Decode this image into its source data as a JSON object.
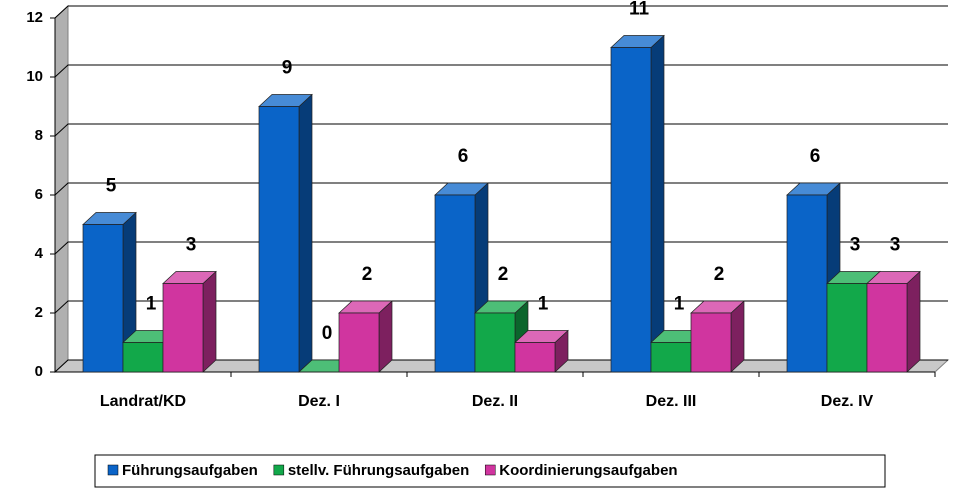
{
  "chart_data": {
    "type": "bar3d",
    "categories": [
      "Landrat/KD",
      "Dez. I",
      "Dez. II",
      "Dez. III",
      "Dez. IV"
    ],
    "series": [
      {
        "name": "Führungsaufgaben",
        "color": "#0a64c8",
        "values": [
          5,
          9,
          6,
          11,
          6
        ]
      },
      {
        "name": "stellv. Führungsaufgaben",
        "color": "#12a84a",
        "values": [
          1,
          0,
          2,
          1,
          3
        ]
      },
      {
        "name": "Koordinierungsaufgaben",
        "color": "#d0359f",
        "values": [
          3,
          2,
          1,
          2,
          3
        ]
      }
    ],
    "ylim": [
      0,
      12
    ],
    "yticks": [
      0,
      2,
      4,
      6,
      8,
      10,
      12
    ],
    "grid": true,
    "legend": "bottom"
  }
}
